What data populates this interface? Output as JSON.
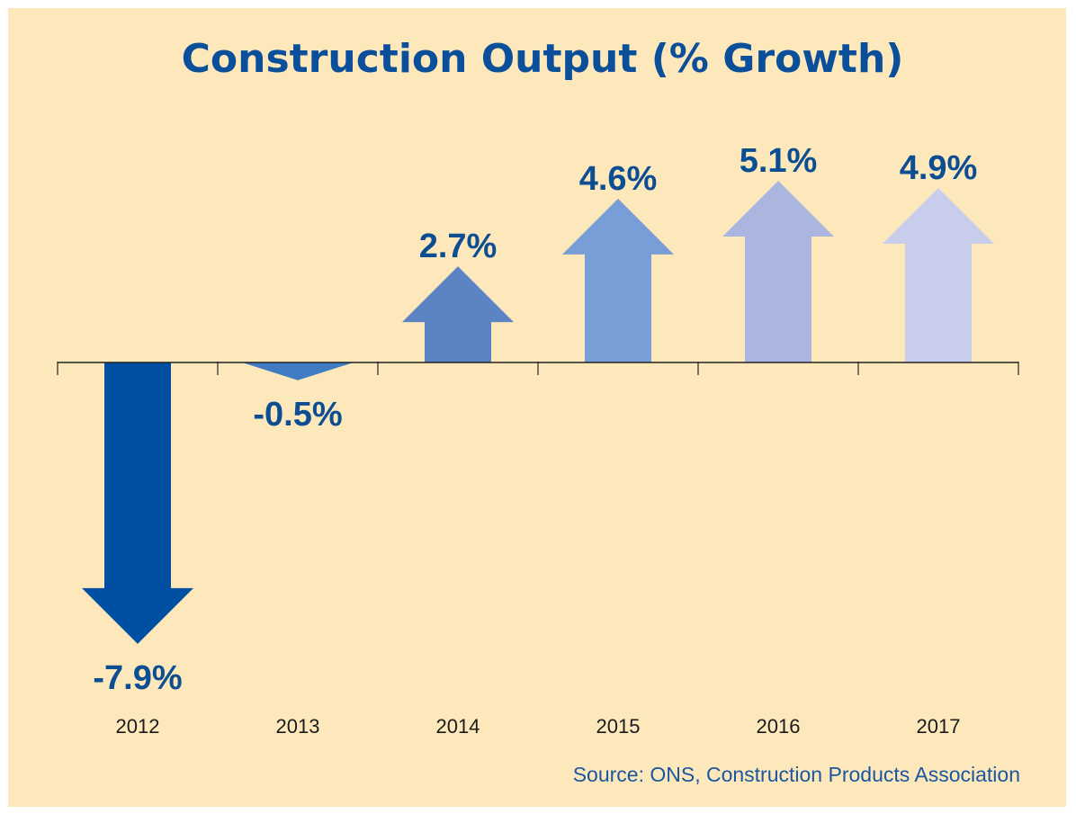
{
  "chart_data": {
    "type": "bar",
    "title": "Construction Output (% Growth)",
    "categories": [
      "2012",
      "2013",
      "2014",
      "2015",
      "2016",
      "2017"
    ],
    "values": [
      -7.9,
      -0.5,
      2.7,
      4.6,
      5.1,
      4.9
    ],
    "value_labels": [
      "-7.9%",
      "-0.5%",
      "2.7%",
      "4.6%",
      "5.1%",
      "4.9%"
    ],
    "colors": [
      "#004fa2",
      "#3f7cc4",
      "#5c83c4",
      "#779ed6",
      "#abb6e0",
      "#c8cdec"
    ],
    "marker": "arrow",
    "xlabel": "",
    "ylabel": "",
    "ylim": [
      -9.2,
      5.9
    ],
    "grid": false,
    "source": "Source: ONS, Construction Products Association"
  },
  "background_color": "#fde8bc",
  "text_color": "#0b4f9a"
}
